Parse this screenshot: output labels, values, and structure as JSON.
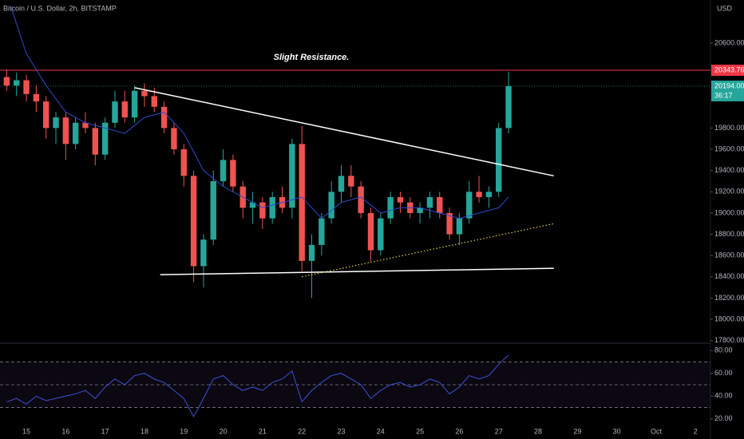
{
  "chart_data": {
    "type": "candlestick",
    "title": "Bitcoin / U.S. Dollar, 2h, BITSTAMP",
    "currency": "USD",
    "annotation": "Slight Resistance.",
    "up_color": "#26a69a",
    "down_color": "#ef5350",
    "xlim": [
      14.33,
      32.38
    ],
    "xticks": [
      15,
      16,
      17,
      18,
      19,
      20,
      21,
      22,
      23,
      24,
      25,
      26,
      27,
      28,
      29,
      30,
      {
        "value": 31,
        "label": "Oct"
      },
      {
        "value": 32,
        "label": "2"
      }
    ],
    "ylim": [
      17790,
      21005
    ],
    "yticks": [
      {
        "value": 20600,
        "label": "20600.00"
      },
      {
        "value": 19800,
        "label": "19800.00"
      },
      {
        "value": 19600,
        "label": "19600.00"
      },
      {
        "value": 19400,
        "label": "19400.00"
      },
      {
        "value": 19200,
        "label": "19200.00"
      },
      {
        "value": 19000,
        "label": "19000.00"
      },
      {
        "value": 18800,
        "label": "18800.00"
      },
      {
        "value": 18600,
        "label": "18600.00"
      },
      {
        "value": 18400,
        "label": "18400.00"
      },
      {
        "value": 18200,
        "label": "18200.00"
      },
      {
        "value": 18000,
        "label": "18000.00"
      },
      {
        "value": 17800,
        "label": "17800.00"
      }
    ],
    "x": [
      14.5,
      14.75,
      15,
      15.25,
      15.5,
      15.75,
      16,
      16.25,
      16.5,
      16.75,
      17,
      17.25,
      17.5,
      17.75,
      18,
      18.25,
      18.5,
      18.75,
      19,
      19.25,
      19.5,
      19.75,
      20,
      20.25,
      20.5,
      20.75,
      21,
      21.25,
      21.5,
      21.75,
      22,
      22.25,
      22.5,
      22.75,
      23,
      23.25,
      23.5,
      23.75,
      24,
      24.25,
      24.5,
      24.75,
      25,
      25.25,
      25.5,
      25.75,
      26,
      26.25,
      26.5,
      26.75,
      27,
      27.25
    ],
    "candles": [
      [
        20280,
        20350,
        20150,
        20200
      ],
      [
        20200,
        20320,
        20100,
        20250
      ],
      [
        20250,
        20300,
        20050,
        20120
      ],
      [
        20120,
        20200,
        19950,
        20050
      ],
      [
        20050,
        20100,
        19700,
        19800
      ],
      [
        19800,
        19950,
        19650,
        19900
      ],
      [
        19900,
        19950,
        19500,
        19650
      ],
      [
        19650,
        19900,
        19600,
        19850
      ],
      [
        19850,
        19950,
        19750,
        19800
      ],
      [
        19800,
        19850,
        19450,
        19550
      ],
      [
        19550,
        19900,
        19500,
        19850
      ],
      [
        19850,
        20150,
        19800,
        20050
      ],
      [
        20050,
        20150,
        19850,
        19900
      ],
      [
        19900,
        20200,
        19850,
        20150
      ],
      [
        20150,
        20220,
        20000,
        20100
      ],
      [
        20100,
        20180,
        19950,
        20000
      ],
      [
        20000,
        20050,
        19750,
        19800
      ],
      [
        19800,
        19850,
        19550,
        19600
      ],
      [
        19600,
        19650,
        19250,
        19350
      ],
      [
        19350,
        19400,
        18350,
        18500
      ],
      [
        18500,
        18800,
        18300,
        18750
      ],
      [
        18750,
        19400,
        18700,
        19300
      ],
      [
        19300,
        19600,
        19250,
        19500
      ],
      [
        19500,
        19550,
        19200,
        19250
      ],
      [
        19250,
        19300,
        18950,
        19050
      ],
      [
        19050,
        19200,
        18900,
        19100
      ],
      [
        19100,
        19150,
        18850,
        18950
      ],
      [
        18950,
        19200,
        18900,
        19150
      ],
      [
        19150,
        19250,
        19000,
        19050
      ],
      [
        19050,
        19700,
        18950,
        19650
      ],
      [
        19650,
        19820,
        18450,
        18550
      ],
      [
        18550,
        18800,
        18200,
        18700
      ],
      [
        18700,
        19000,
        18600,
        18950
      ],
      [
        18950,
        19300,
        18900,
        19200
      ],
      [
        19200,
        19450,
        19100,
        19350
      ],
      [
        19350,
        19450,
        19150,
        19250
      ],
      [
        19250,
        19300,
        18950,
        19000
      ],
      [
        19000,
        19050,
        18550,
        18650
      ],
      [
        18650,
        19000,
        18600,
        18950
      ],
      [
        18950,
        19200,
        18900,
        19150
      ],
      [
        19150,
        19200,
        19000,
        19100
      ],
      [
        19100,
        19150,
        18950,
        19000
      ],
      [
        19000,
        19100,
        18900,
        19050
      ],
      [
        19050,
        19200,
        18950,
        19150
      ],
      [
        19150,
        19200,
        18950,
        19000
      ],
      [
        19000,
        19050,
        18750,
        18800
      ],
      [
        18800,
        19000,
        18700,
        18950
      ],
      [
        18950,
        19300,
        18900,
        19200
      ],
      [
        19200,
        19350,
        19100,
        19150
      ],
      [
        19150,
        19250,
        19050,
        19200
      ],
      [
        19200,
        19850,
        19150,
        19800
      ],
      [
        19800,
        20330,
        19750,
        20194
      ]
    ],
    "moving_average": {
      "color": "#3049c9",
      "x": [
        14.6,
        15,
        15.5,
        16,
        16.5,
        17,
        17.5,
        18,
        18.5,
        19,
        19.5,
        20,
        20.5,
        21,
        21.5,
        22,
        22.5,
        23,
        23.5,
        24,
        24.5,
        25,
        25.5,
        26,
        26.5,
        27,
        27.25
      ],
      "values": [
        20950,
        20500,
        20200,
        19950,
        19850,
        19800,
        19750,
        19900,
        19950,
        19750,
        19400,
        19250,
        19150,
        19050,
        19100,
        19150,
        18950,
        19100,
        19150,
        19000,
        19050,
        19050,
        19000,
        18950,
        19000,
        19050,
        19150
      ]
    },
    "trendlines": [
      {
        "color": "#ffffff",
        "style": "solid",
        "x": [
          17.75,
          28.4
        ],
        "y": [
          20180,
          19350
        ]
      },
      {
        "color": "#ffffff",
        "style": "solid",
        "x": [
          18.4,
          28.4
        ],
        "y": [
          18420,
          18480
        ]
      },
      {
        "color": "#e6d24a",
        "style": "dotted",
        "x": [
          22.0,
          28.4
        ],
        "y": [
          18400,
          18900
        ]
      }
    ],
    "resistance": {
      "value": 20343.76,
      "color": "#f23645"
    },
    "last_price": {
      "value": 20194,
      "label": "20194.00",
      "countdown": "36:17"
    },
    "rsi": {
      "color": "#3f51d8",
      "ylim": [
        15,
        85
      ],
      "yticks": [
        {
          "value": 80,
          "label": "80.00"
        },
        {
          "value": 60,
          "label": "60.00"
        },
        {
          "value": 40,
          "label": "40.00"
        },
        {
          "value": 20,
          "label": "20.00"
        }
      ],
      "bands": [
        70,
        50,
        30
      ],
      "values": [
        35,
        38,
        33,
        40,
        36,
        38,
        40,
        42,
        45,
        38,
        48,
        55,
        50,
        58,
        60,
        55,
        52,
        45,
        38,
        22,
        38,
        55,
        58,
        50,
        45,
        48,
        45,
        52,
        55,
        62,
        35,
        45,
        52,
        58,
        60,
        55,
        50,
        38,
        45,
        50,
        52,
        48,
        50,
        55,
        52,
        42,
        48,
        58,
        55,
        58,
        68,
        76
      ]
    }
  }
}
